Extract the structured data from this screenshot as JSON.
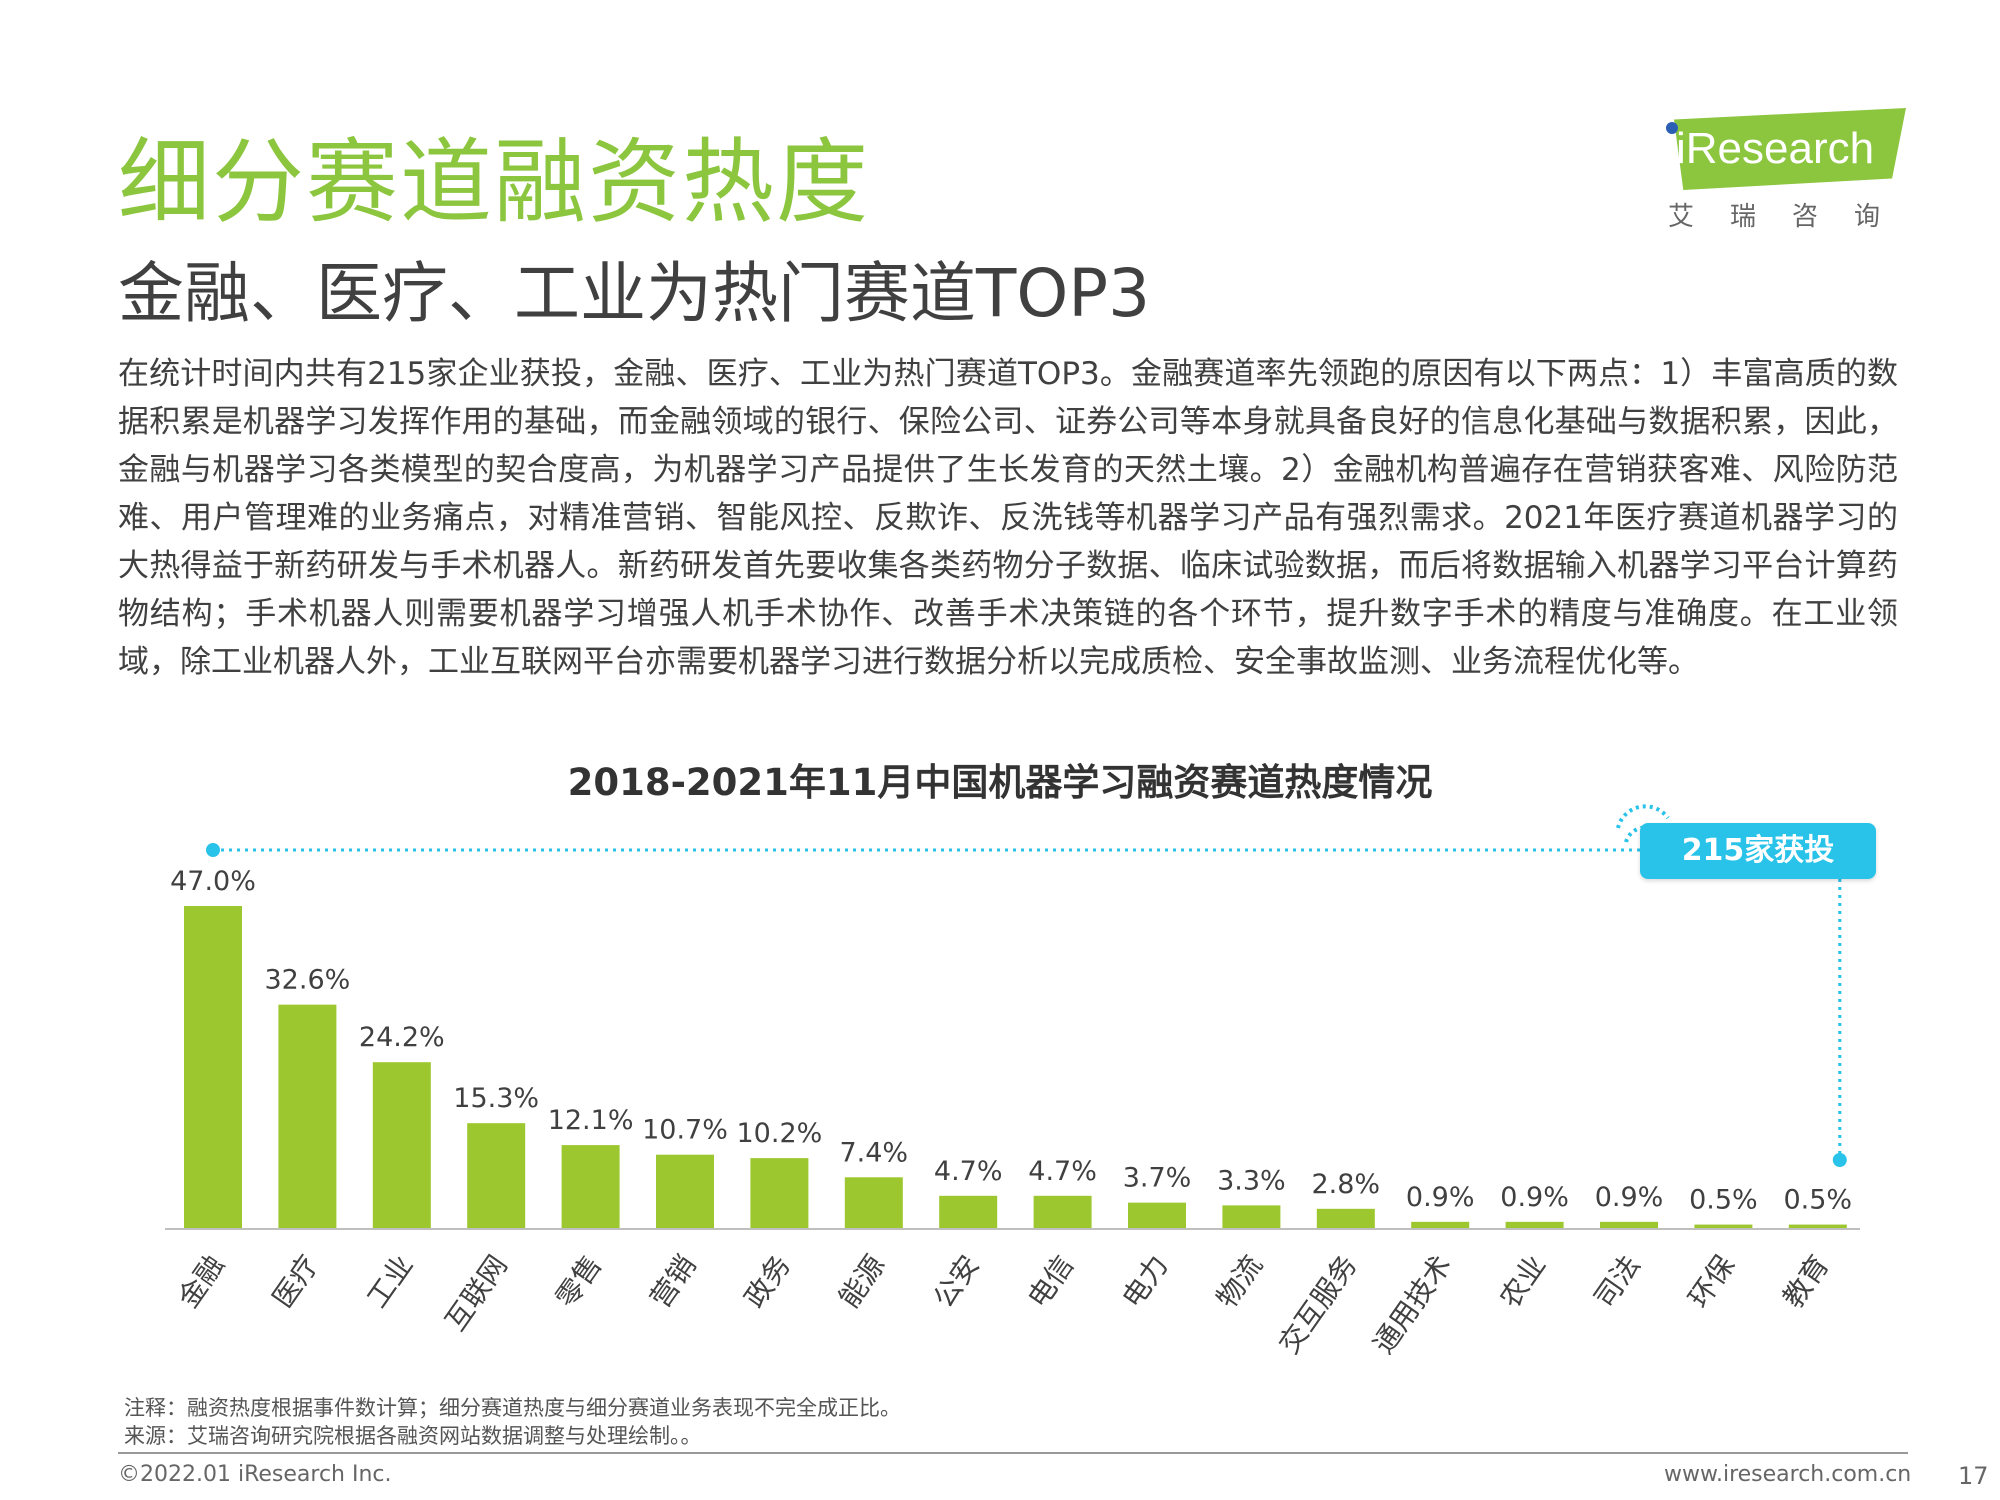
{
  "header": {
    "title": "细分赛道融资热度",
    "subtitle": "金融、医疗、工业为热门赛道TOP3"
  },
  "logo": {
    "text": "iResearch",
    "cn": "艾瑞咨询"
  },
  "body": "在统计时间内共有215家企业获投，金融、医疗、工业为热门赛道TOP3。金融赛道率先领跑的原因有以下两点：1）丰富高质的数据积累是机器学习发挥作用的基础，而金融领域的银行、保险公司、证券公司等本身就具备良好的信息化基础与数据积累，因此，金融与机器学习各类模型的契合度高，为机器学习产品提供了生长发育的天然土壤。2）金融机构普遍存在营销获客难、风险防范难、用户管理难的业务痛点，对精准营销、智能风控、反欺诈、反洗钱等机器学习产品有强烈需求。2021年医疗赛道机器学习的大热得益于新药研发与手术机器人。新药研发首先要收集各类药物分子数据、临床试验数据，而后将数据输入机器学习平台计算药物结构；手术机器人则需要机器学习增强人机手术协作、改善手术决策链的各个环节，提升数字手术的精度与准确度。在工业领域，除工业机器人外，工业互联网平台亦需要机器学习进行数据分析以完成质检、安全事故监测、业务流程优化等。",
  "chart_data": {
    "type": "bar",
    "title": "2018-2021年11月中国机器学习融资赛道热度情况",
    "categories": [
      "金融",
      "医疗",
      "工业",
      "互联网",
      "零售",
      "营销",
      "政务",
      "能源",
      "公安",
      "电信",
      "电力",
      "物流",
      "交互服务",
      "通用技术",
      "农业",
      "司法",
      "环保",
      "教育"
    ],
    "values": [
      47.0,
      32.6,
      24.2,
      15.3,
      12.1,
      10.7,
      10.2,
      7.4,
      4.7,
      4.7,
      3.7,
      3.3,
      2.8,
      0.9,
      0.9,
      0.9,
      0.5,
      0.5
    ],
    "value_labels": [
      "47.0%",
      "32.6%",
      "24.2%",
      "15.3%",
      "12.1%",
      "10.7%",
      "10.2%",
      "7.4%",
      "4.7%",
      "4.7%",
      "3.7%",
      "3.3%",
      "2.8%",
      "0.9%",
      "0.9%",
      "0.9%",
      "0.5%",
      "0.5%"
    ],
    "ylim": [
      0,
      50
    ],
    "grid": false,
    "bar_color": "#9dc72e",
    "annotation": "215家获投",
    "annotation_color": "#29c3ea"
  },
  "notes": {
    "note": "注释：融资热度根据事件数计算；细分赛道热度与细分赛道业务表现不完全成正比。",
    "source": "来源：艾瑞咨询研究院根据各融资网站数据调整与处理绘制。。"
  },
  "footer": {
    "copyright": "©2022.01 iResearch Inc.",
    "website": "www.iresearch.com.cn",
    "page": "17"
  }
}
